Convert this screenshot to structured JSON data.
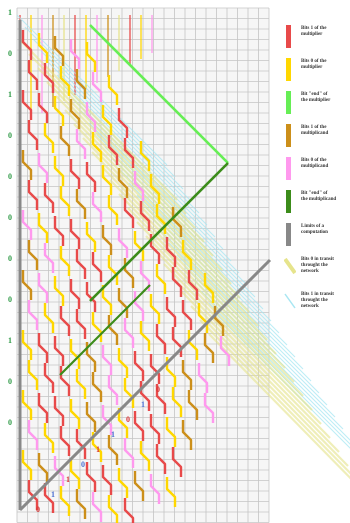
{
  "colors": {
    "bit1_multiplier": "#e84a4a",
    "bit0_multiplier": "#ffd700",
    "end_multiplier": "#66ee55",
    "bit1_multiplicand": "#cc8f1a",
    "bit0_multiplicand": "#ff99ee",
    "end_multiplicand": "#3c8c1a",
    "limits": "#888888",
    "bit0_transit": "#e6e48c",
    "bit1_transit": "#a8e6f2",
    "grid_line": "#c4c4c4",
    "grid_fill": "#f6f6f6",
    "label_green": "#2e9a46",
    "label_red": "#d93636",
    "label_blue": "#4a6fd1"
  },
  "left_bits": [
    "1",
    "0",
    "1",
    "0",
    "0",
    "0",
    "0",
    "0",
    "1",
    "0",
    "0"
  ],
  "diagonal_bits": [
    "0",
    "1",
    "1",
    "0",
    "1",
    "1",
    "0",
    "1",
    "0"
  ],
  "legend": [
    {
      "label": "Bits  1  of the\nmultiplier",
      "color_key": "bit1_multiplier",
      "icon": "vertical-bar"
    },
    {
      "label": "Bits  0  of the\nmultiplier",
      "color_key": "bit0_multiplier",
      "icon": "vertical-bar"
    },
    {
      "label": "Bit  \"end\"  of\nthe multiplier",
      "color_key": "end_multiplier",
      "icon": "vertical-bar"
    },
    {
      "label": "Bits  1  of the\nmultiplicand",
      "color_key": "bit1_multiplicand",
      "icon": "vertical-bar"
    },
    {
      "label": "Bits  0  of the\nmultiplicand",
      "color_key": "bit0_multiplicand",
      "icon": "vertical-bar"
    },
    {
      "label": "Bit  \"end\"  of\nthe multiplicand",
      "color_key": "end_multiplicand",
      "icon": "vertical-bar"
    },
    {
      "label": "Limits of a\ncomputation",
      "color_key": "limits",
      "icon": "vertical-bar"
    },
    {
      "label": "Bits  0  in transit\nthrought the\nnetwork",
      "color_key": "bit0_transit",
      "icon": "diagonal-bar"
    },
    {
      "label": "Bits  1  in transit\nthrought the\nnetwork",
      "color_key": "bit1_transit",
      "icon": "diagonal-line"
    }
  ]
}
